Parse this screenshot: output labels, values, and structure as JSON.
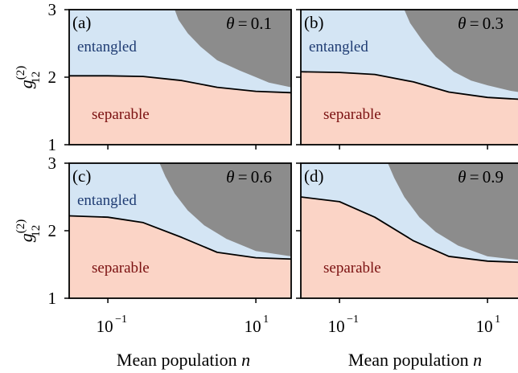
{
  "chart_data": {
    "type": "area",
    "layout": "2x2 grid of panels sharing axes",
    "x_scale": "log",
    "x_ticks": [
      "10",
      "10"
    ],
    "x_tick_exponents": [
      "−1",
      "1"
    ],
    "x_tick_values": [
      0.1,
      10
    ],
    "xlim": [
      0.03,
      30
    ],
    "y_ticks": [
      "1",
      "2",
      "3"
    ],
    "ylim": [
      1,
      3
    ],
    "xlabel": "Mean population",
    "xlabel_var": "n",
    "ylabel_base": "g",
    "ylabel_sup": "(2)",
    "ylabel_sub": "12",
    "grid": false,
    "colors": {
      "entangled": "#d4e5f4",
      "separable": "#fbd4c6",
      "gray_region": "#8c8c8c",
      "boundary": "#000000",
      "entangled_text": "#1f3c73",
      "separable_text": "#7a1010"
    },
    "region_labels": {
      "entangled": "entangled",
      "separable": "separable"
    },
    "theta_symbol": "θ",
    "panels": [
      {
        "tag": "(a)",
        "theta": "0.1",
        "show_entangled_label": true,
        "boundary": {
          "x": [
            0.03,
            0.1,
            0.3,
            1,
            3,
            10,
            30
          ],
          "y": [
            2.02,
            2.02,
            2.01,
            1.95,
            1.85,
            1.79,
            1.77
          ]
        },
        "gray_edge": {
          "x": [
            0.8,
            0.9,
            1.2,
            1.8,
            3,
            6,
            10,
            15,
            30
          ],
          "y": [
            3.0,
            2.85,
            2.65,
            2.45,
            2.25,
            2.1,
            2.0,
            1.92,
            1.85
          ]
        }
      },
      {
        "tag": "(b)",
        "theta": "0.3",
        "show_entangled_label": true,
        "boundary": {
          "x": [
            0.03,
            0.1,
            0.3,
            1,
            3,
            10,
            30
          ],
          "y": [
            2.08,
            2.07,
            2.04,
            1.93,
            1.78,
            1.7,
            1.67
          ]
        },
        "gray_edge": {
          "x": [
            0.75,
            0.9,
            1.3,
            2,
            3.5,
            6,
            10,
            20,
            30
          ],
          "y": [
            3.0,
            2.8,
            2.55,
            2.3,
            2.08,
            1.95,
            1.88,
            1.8,
            1.77
          ]
        }
      },
      {
        "tag": "(c)",
        "theta": "0.6",
        "show_entangled_label": true,
        "boundary": {
          "x": [
            0.03,
            0.1,
            0.3,
            1,
            3,
            10,
            30
          ],
          "y": [
            2.22,
            2.2,
            2.12,
            1.9,
            1.68,
            1.6,
            1.58
          ]
        },
        "gray_edge": {
          "x": [
            0.5,
            0.6,
            0.8,
            1.2,
            2,
            4,
            10,
            30
          ],
          "y": [
            3.0,
            2.8,
            2.55,
            2.3,
            2.08,
            1.88,
            1.7,
            1.62
          ]
        }
      },
      {
        "tag": "(d)",
        "theta": "0.9",
        "show_entangled_label": false,
        "boundary": {
          "x": [
            0.03,
            0.1,
            0.3,
            1,
            3,
            10,
            30
          ],
          "y": [
            2.5,
            2.43,
            2.2,
            1.85,
            1.62,
            1.55,
            1.53
          ]
        },
        "gray_edge": {
          "x": [
            0.45,
            0.55,
            0.75,
            1.2,
            2,
            4,
            10,
            30
          ],
          "y": [
            3.0,
            2.78,
            2.5,
            2.2,
            1.98,
            1.78,
            1.62,
            1.56
          ]
        }
      }
    ]
  }
}
